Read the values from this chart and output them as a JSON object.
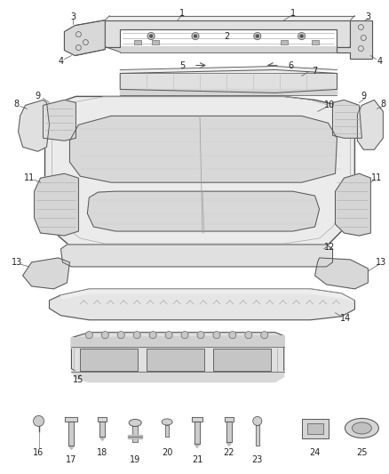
{
  "bg_color": "#ffffff",
  "fig_width": 4.38,
  "fig_height": 5.33,
  "dpi": 100,
  "line_color": "#555555",
  "fill_light": "#e8e8e8",
  "fill_mid": "#d8d8d8",
  "fill_dark": "#c8c8c8",
  "label_fontsize": 7.0,
  "label_color": "#222222"
}
